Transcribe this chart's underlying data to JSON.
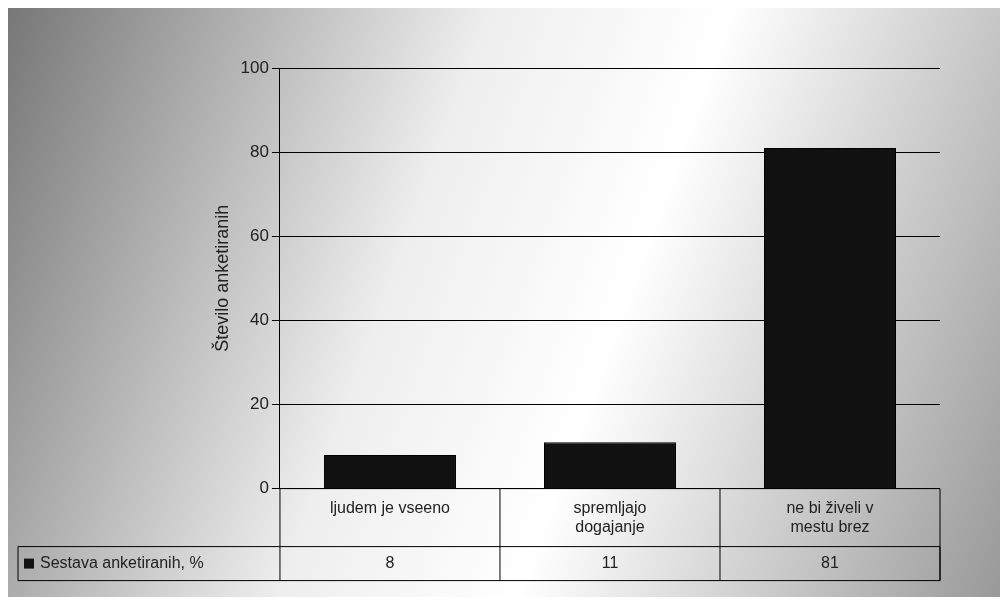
{
  "chart_data": {
    "type": "bar",
    "ylabel": "Število anketiranih",
    "categories": [
      "ljudem je vseeno",
      "spremljajo dogajanje",
      "ne bi živeli v mestu brez"
    ],
    "series": [
      {
        "name": "Sestava anketiranih, %",
        "color": "#111111",
        "values": [
          8,
          11,
          81
        ]
      }
    ],
    "ylim": [
      0,
      100
    ],
    "yticks": [
      0,
      20,
      40,
      60,
      80,
      100
    ],
    "grid": "y",
    "legend": "bottom",
    "data_labels": true
  }
}
